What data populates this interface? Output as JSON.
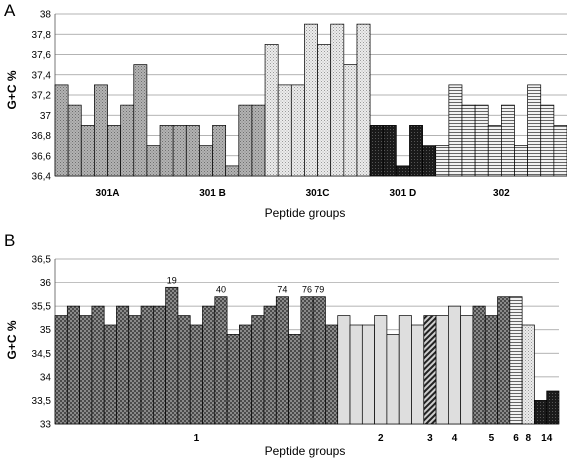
{
  "chart_data": [
    {
      "type": "bar",
      "panel_label": "A",
      "xlabel": "Peptide groups",
      "ylabel": "G+C %",
      "ylim": [
        36.4,
        38
      ],
      "yticks": [
        "36,4",
        "36,6",
        "36,8",
        "37",
        "37,2",
        "37,4",
        "37,6",
        "37,8",
        "38"
      ],
      "grid": true,
      "groups": [
        {
          "label": "301A",
          "style": "gray-dots",
          "color": "#a3a3a3",
          "values": [
            37.3,
            37.1,
            36.9,
            37.3,
            36.9,
            37.1,
            37.5,
            36.7
          ]
        },
        {
          "label": "301 B",
          "style": "gray-dots",
          "color": "#a3a3a3",
          "values": [
            36.9,
            36.9,
            36.9,
            36.7,
            36.9,
            36.5,
            37.1,
            37.1
          ]
        },
        {
          "label": "301C",
          "style": "light-dots",
          "color": "#dadada",
          "values": [
            37.7,
            37.3,
            37.3,
            37.9,
            37.7,
            37.9,
            37.5,
            37.9
          ]
        },
        {
          "label": "301 D",
          "style": "black",
          "color": "#222222",
          "values": [
            36.9,
            36.9,
            36.5,
            36.9,
            36.7
          ]
        },
        {
          "label": "302",
          "style": "hlines",
          "color": "#cfcfcf",
          "values": [
            36.7,
            37.3,
            37.1,
            37.1,
            36.9,
            37.1,
            36.7,
            37.3,
            37.1,
            36.9
          ]
        }
      ]
    },
    {
      "type": "bar",
      "panel_label": "B",
      "xlabel": "Peptide groups",
      "ylabel": "G+C %",
      "ylim": [
        33,
        36.5
      ],
      "yticks": [
        "33",
        "33,5",
        "34",
        "34,5",
        "35",
        "35,5",
        "36",
        "36,5"
      ],
      "grid": true,
      "groups": [
        {
          "label": "1",
          "style": "dark-check",
          "color": "#6e6e6e",
          "values": [
            35.3,
            35.5,
            35.3,
            35.5,
            35.1,
            35.5,
            35.3,
            35.5,
            35.5,
            35.9,
            35.3,
            35.1,
            35.5,
            35.7,
            34.9,
            35.1,
            35.3,
            35.5,
            35.7,
            34.9,
            35.7,
            35.7,
            35.1
          ],
          "annotations": [
            {
              "index": 9,
              "text": "19"
            },
            {
              "index": 13,
              "text": "40"
            },
            {
              "index": 18,
              "text": "74"
            },
            {
              "index": 20,
              "text": "76"
            },
            {
              "index": 21,
              "text": "79"
            }
          ]
        },
        {
          "label": "2",
          "style": "light-gray",
          "color": "#e0e0e0",
          "values": [
            35.3,
            35.1,
            35.1,
            35.3,
            34.9,
            35.3,
            35.1
          ]
        },
        {
          "label": "3",
          "style": "diagonal",
          "color": "#444444",
          "values": [
            35.3
          ]
        },
        {
          "label": "4",
          "style": "light-gray",
          "color": "#e0e0e0",
          "values": [
            35.3,
            35.5,
            35.3
          ]
        },
        {
          "label": "5",
          "style": "dark-check",
          "color": "#6e6e6e",
          "values": [
            35.5,
            35.3,
            35.7
          ]
        },
        {
          "label": "6",
          "style": "hlines",
          "color": "#cfcfcf",
          "values": [
            35.7
          ]
        },
        {
          "label": "8",
          "style": "light-dots",
          "color": "#bdbdbd",
          "values": [
            35.1
          ]
        },
        {
          "label": "14",
          "style": "black",
          "color": "#000000",
          "values": [
            33.5,
            33.7
          ]
        }
      ]
    }
  ]
}
